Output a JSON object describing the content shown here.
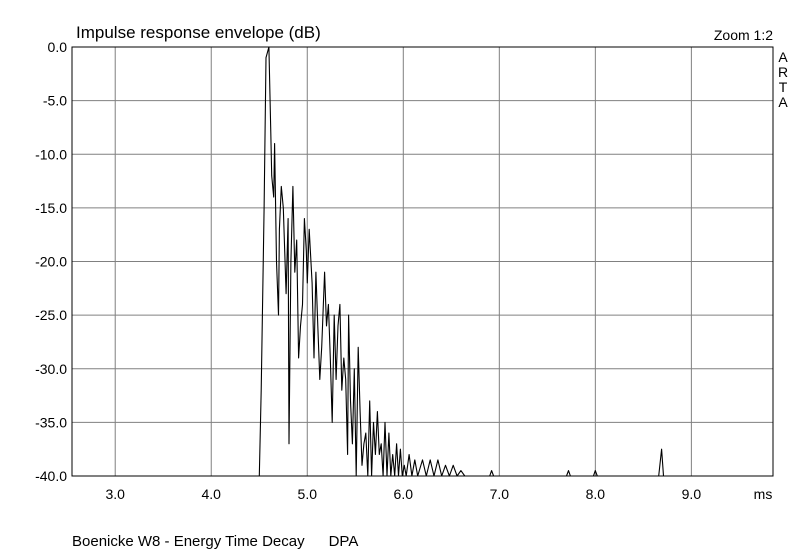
{
  "chart_data": {
    "type": "line",
    "title": "Impulse response envelope (dB)",
    "zoom_label": "Zoom 1:2",
    "brand_letters": [
      "A",
      "R",
      "T",
      "A"
    ],
    "xlabel": "ms",
    "ylabel": "",
    "xlim": [
      2.55,
      9.85
    ],
    "ylim": [
      -40,
      0
    ],
    "x_ticks": [
      3.0,
      4.0,
      5.0,
      6.0,
      7.0,
      8.0,
      9.0
    ],
    "x_tick_labels": [
      "3.0",
      "4.0",
      "5.0",
      "6.0",
      "7.0",
      "8.0",
      "9.0"
    ],
    "y_ticks": [
      0,
      -5,
      -10,
      -15,
      -20,
      -25,
      -30,
      -35,
      -40
    ],
    "y_tick_labels": [
      "0.0",
      "-5.0",
      "-10.0",
      "-15.0",
      "-20.0",
      "-25.0",
      "-30.0",
      "-35.0",
      "-40.0"
    ],
    "grid": true,
    "line_color": "#000000",
    "series": [
      {
        "name": "",
        "x": [
          2.55,
          4.5,
          4.52,
          4.55,
          4.57,
          4.6,
          4.62,
          4.63,
          4.65,
          4.66,
          4.68,
          4.7,
          4.71,
          4.73,
          4.75,
          4.78,
          4.8,
          4.81,
          4.83,
          4.85,
          4.87,
          4.89,
          4.91,
          4.93,
          4.95,
          4.97,
          4.99,
          5.0,
          5.02,
          5.05,
          5.07,
          5.09,
          5.11,
          5.13,
          5.15,
          5.18,
          5.2,
          5.22,
          5.24,
          5.26,
          5.28,
          5.3,
          5.32,
          5.34,
          5.36,
          5.38,
          5.4,
          5.42,
          5.43,
          5.45,
          5.47,
          5.49,
          5.51,
          5.53,
          5.55,
          5.57,
          5.59,
          5.61,
          5.63,
          5.65,
          5.67,
          5.69,
          5.71,
          5.73,
          5.75,
          5.77,
          5.79,
          5.81,
          5.83,
          5.85,
          5.87,
          5.89,
          5.91,
          5.93,
          5.95,
          5.97,
          5.99,
          6.01,
          6.03,
          6.06,
          6.09,
          6.12,
          6.15,
          6.2,
          6.24,
          6.28,
          6.32,
          6.36,
          6.4,
          6.44,
          6.48,
          6.52,
          6.56,
          6.6,
          6.64,
          6.68,
          6.9,
          6.92,
          6.94,
          7.7,
          7.72,
          7.74,
          7.98,
          8.0,
          8.02,
          8.66,
          8.69,
          8.71,
          8.73,
          9.85
        ],
        "y": [
          -40,
          -40,
          -32,
          -15,
          -1,
          0,
          -8,
          -12,
          -14,
          -9,
          -20,
          -25,
          -17,
          -13,
          -15,
          -23,
          -16,
          -37,
          -20,
          -13,
          -21,
          -18,
          -29,
          -26,
          -24,
          -16,
          -19,
          -22,
          -17,
          -22,
          -29,
          -21,
          -26,
          -31,
          -28,
          -21,
          -26,
          -24,
          -29,
          -35,
          -25,
          -31,
          -26,
          -24,
          -32,
          -29,
          -31,
          -38,
          -25,
          -33,
          -37,
          -30,
          -40,
          -28,
          -34,
          -39,
          -37,
          -36,
          -40,
          -33,
          -40,
          -35,
          -38,
          -34,
          -38,
          -37,
          -40,
          -35,
          -40,
          -36,
          -40,
          -38,
          -40,
          -37,
          -40,
          -37.5,
          -40,
          -39,
          -40,
          -38,
          -40,
          -38.5,
          -40,
          -38.5,
          -40,
          -38.5,
          -40,
          -38.5,
          -40,
          -39,
          -40,
          -39,
          -40,
          -39.5,
          -40,
          -40,
          -40,
          -39.5,
          -40,
          -40,
          -39.5,
          -40,
          -40,
          -39.5,
          -40,
          -40,
          -37.5,
          -40,
          -40,
          -40
        ]
      }
    ]
  },
  "footer": {
    "caption": "Boenicke W8 - Energy Time Decay",
    "tag": "DPA"
  }
}
